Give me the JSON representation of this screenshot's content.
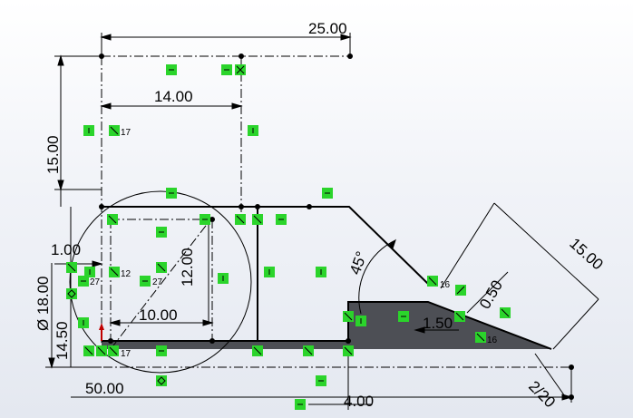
{
  "dimensions": {
    "d25": "25.00",
    "d14": "14.00",
    "d15v": "15.00",
    "d12": "12.00",
    "d1": "1.00",
    "d18": "Ø 18.00",
    "d14_5": "14.50",
    "d10": "10.00",
    "d50": "50.00",
    "d4": "4.00",
    "d45": "45°",
    "d1_5": "1.50",
    "d0_5": "0.50",
    "d15a": "15.00",
    "d2_2": "2/20"
  },
  "relation_tags": {
    "r17a": "17",
    "r17b": "17",
    "r27a": "27",
    "r27b": "27",
    "r16a": "16",
    "r16b": "16",
    "r12": "12"
  },
  "colors": {
    "relation_green": "#2bd42b",
    "region_fill": "#4d4f55",
    "line": "#000000"
  }
}
